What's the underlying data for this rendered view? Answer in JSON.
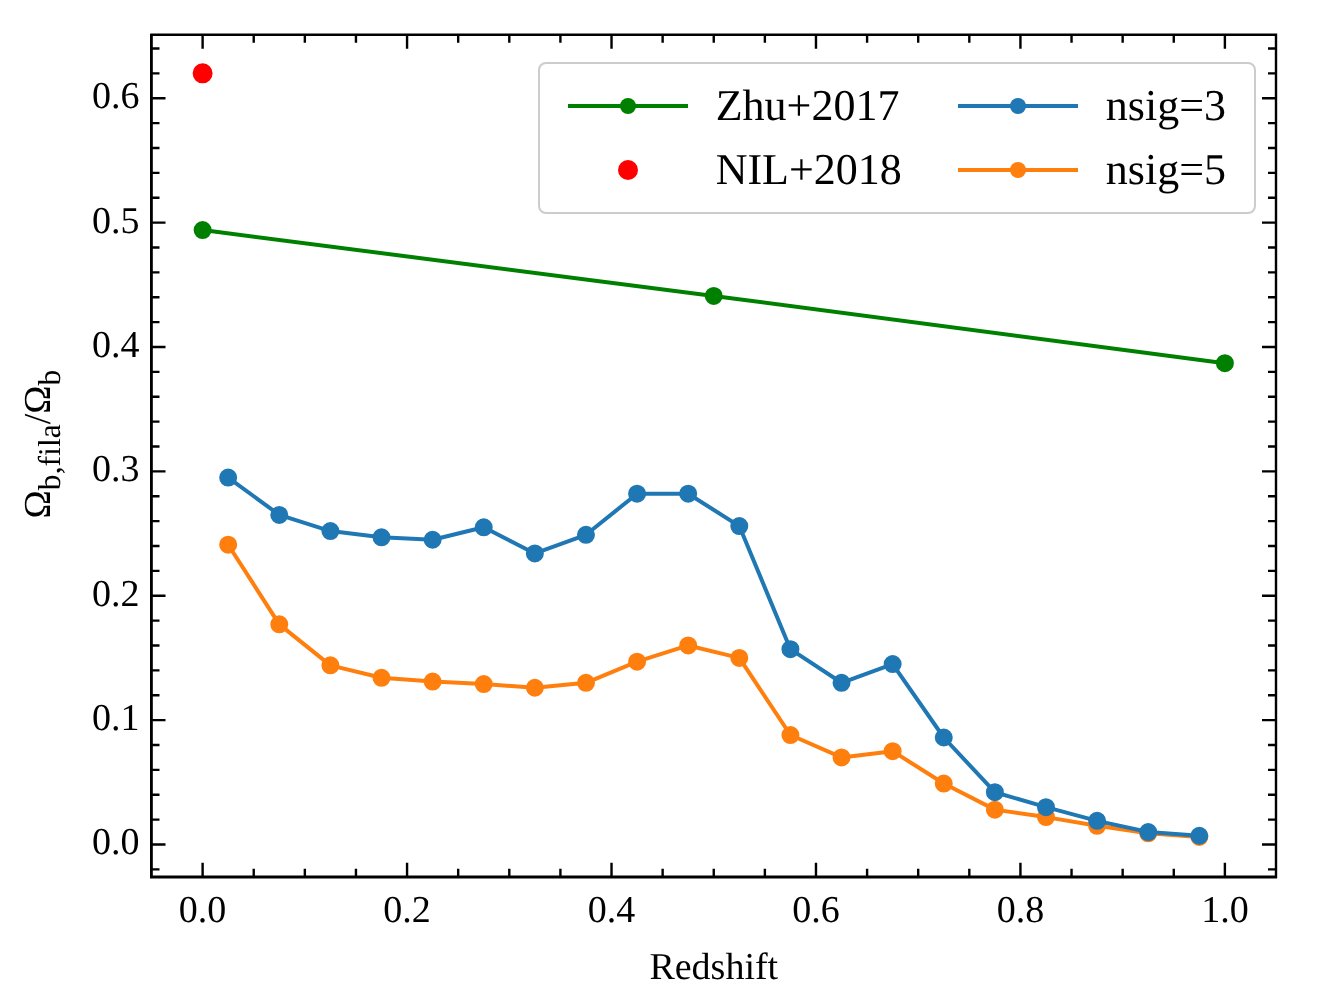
{
  "chart_data": {
    "type": "line",
    "xlabel": "Redshift",
    "ylabel": "Ω$_{b,fila}$/Ω$_{b}$",
    "xlim": [
      -0.05,
      1.05
    ],
    "ylim": [
      -0.026,
      0.651
    ],
    "xticks": [
      {
        "value": 0,
        "label": "0.0"
      },
      {
        "value": 0.05,
        "label": null
      },
      {
        "value": 0.1,
        "label": null
      },
      {
        "value": 0.15,
        "label": null
      },
      {
        "value": 0.2,
        "label": "0.2"
      },
      {
        "value": 0.25,
        "label": null
      },
      {
        "value": 0.3,
        "label": null
      },
      {
        "value": 0.35,
        "label": null
      },
      {
        "value": 0.4,
        "label": "0.4"
      },
      {
        "value": 0.45,
        "label": null
      },
      {
        "value": 0.5,
        "label": null
      },
      {
        "value": 0.55,
        "label": null
      },
      {
        "value": 0.6,
        "label": "0.6"
      },
      {
        "value": 0.65,
        "label": null
      },
      {
        "value": 0.7,
        "label": null
      },
      {
        "value": 0.75,
        "label": null
      },
      {
        "value": 0.8,
        "label": "0.8"
      },
      {
        "value": 0.85,
        "label": null
      },
      {
        "value": 0.9,
        "label": null
      },
      {
        "value": 0.95,
        "label": null
      },
      {
        "value": 1,
        "label": "1.0"
      }
    ],
    "yticks": [
      {
        "value": -0.02,
        "label": null
      },
      {
        "value": 0,
        "label": "0.0"
      },
      {
        "value": 0.02,
        "label": null
      },
      {
        "value": 0.04,
        "label": null
      },
      {
        "value": 0.06,
        "label": null
      },
      {
        "value": 0.08,
        "label": null
      },
      {
        "value": 0.1,
        "label": "0.1"
      },
      {
        "value": 0.12,
        "label": null
      },
      {
        "value": 0.14,
        "label": null
      },
      {
        "value": 0.16,
        "label": null
      },
      {
        "value": 0.18,
        "label": null
      },
      {
        "value": 0.2,
        "label": "0.2"
      },
      {
        "value": 0.22,
        "label": null
      },
      {
        "value": 0.24,
        "label": null
      },
      {
        "value": 0.26,
        "label": null
      },
      {
        "value": 0.28,
        "label": null
      },
      {
        "value": 0.3,
        "label": "0.3"
      },
      {
        "value": 0.32,
        "label": null
      },
      {
        "value": 0.34,
        "label": null
      },
      {
        "value": 0.36,
        "label": null
      },
      {
        "value": 0.38,
        "label": null
      },
      {
        "value": 0.4,
        "label": "0.4"
      },
      {
        "value": 0.42,
        "label": null
      },
      {
        "value": 0.44,
        "label": null
      },
      {
        "value": 0.46,
        "label": null
      },
      {
        "value": 0.48,
        "label": null
      },
      {
        "value": 0.5,
        "label": "0.5"
      },
      {
        "value": 0.52,
        "label": null
      },
      {
        "value": 0.54,
        "label": null
      },
      {
        "value": 0.56,
        "label": null
      },
      {
        "value": 0.58,
        "label": null
      },
      {
        "value": 0.6,
        "label": "0.6"
      },
      {
        "value": 0.62,
        "label": null
      },
      {
        "value": 0.64,
        "label": null
      }
    ],
    "legend": "top right",
    "marker": "circle",
    "grid": false,
    "series": [
      {
        "name": "Zhu+2017",
        "color": "#008000",
        "x": [
          0,
          0.5,
          1
        ],
        "values": [
          0.494,
          0.441,
          0.387
        ]
      },
      {
        "name": "NIL+2018",
        "type": "scatter",
        "color": "#ff0000",
        "x": [
          0
        ],
        "values": [
          0.62
        ]
      },
      {
        "name": "nsig=3",
        "color": "#1f77b4",
        "x": [
          0.025,
          0.075,
          0.125,
          0.175,
          0.225,
          0.275,
          0.325,
          0.375,
          0.425,
          0.475,
          0.525,
          0.575,
          0.625,
          0.675,
          0.725,
          0.775,
          0.825,
          0.875,
          0.925,
          0.975
        ],
        "values": [
          0.295,
          0.265,
          0.252,
          0.247,
          0.245,
          0.255,
          0.234,
          0.249,
          0.282,
          0.282,
          0.256,
          0.157,
          0.13,
          0.145,
          0.086,
          0.042,
          0.03,
          0.019,
          0.01,
          0.007
        ]
      },
      {
        "name": "nsig=5",
        "color": "#ff7f0e",
        "x": [
          0.025,
          0.075,
          0.125,
          0.175,
          0.225,
          0.275,
          0.325,
          0.375,
          0.425,
          0.475,
          0.525,
          0.575,
          0.625,
          0.675,
          0.725,
          0.775,
          0.825,
          0.875,
          0.925,
          0.975
        ],
        "values": [
          0.241,
          0.177,
          0.144,
          0.134,
          0.131,
          0.129,
          0.126,
          0.13,
          0.147,
          0.16,
          0.15,
          0.088,
          0.07,
          0.075,
          0.049,
          0.028,
          0.022,
          0.015,
          0.009,
          0.006
        ]
      }
    ]
  }
}
